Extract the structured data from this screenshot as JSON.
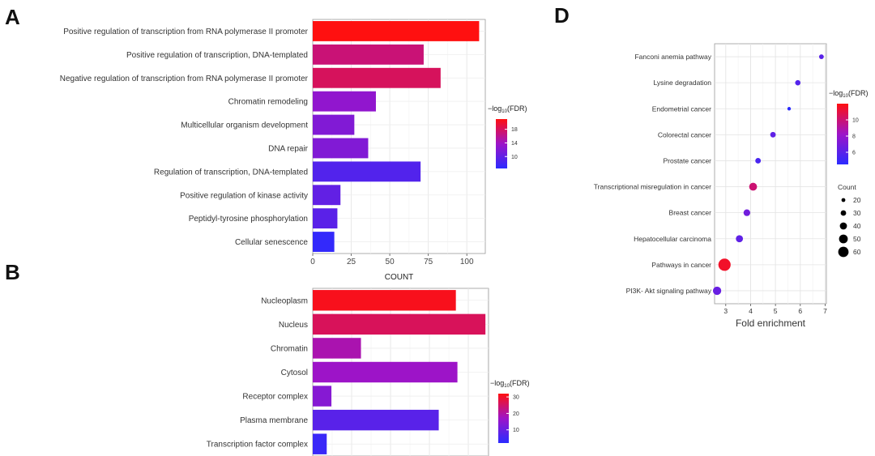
{
  "panels": {
    "A": "A",
    "B": "B",
    "D": "D"
  },
  "chart_data": [
    {
      "type": "bar",
      "orientation": "horizontal",
      "panel": "A",
      "categories": [
        "Positive regulation of transcription from RNA polymerase II promoter",
        "Positive regulation of transcription, DNA-templated",
        "Negative regulation of transcription from RNA polymerase II promoter",
        "Chromatin remodeling",
        "Multicellular organism development",
        "DNA repair",
        "Regulation of transcription, DNA-templated",
        "Positive regulation of kinase activity",
        "Peptidyl-tyrosine phosphorylation",
        "Cellular senescence"
      ],
      "values": [
        108,
        72,
        83,
        41,
        27,
        36,
        70,
        18,
        16,
        14
      ],
      "color_values": [
        21,
        17,
        18,
        13,
        12,
        12,
        9,
        10,
        9.5,
        7
      ],
      "xlim": [
        0,
        112
      ],
      "xticks": [
        "0",
        "25",
        "50",
        "75",
        "100"
      ],
      "xlabel": "COUNT",
      "legend": {
        "title_main": "−log",
        "title_sub": "10",
        "title_end": "(FDR)",
        "ticks": [
          "18",
          "14",
          "10"
        ],
        "range": [
          6.5,
          21
        ]
      }
    },
    {
      "type": "bar",
      "orientation": "horizontal",
      "panel": "B",
      "categories": [
        "Nucleoplasm",
        "Nucleus",
        "Chromatin",
        "Cytosol",
        "Receptor complex",
        "Plasma membrane",
        "Transcription factor complex"
      ],
      "values": [
        92,
        111,
        31,
        93,
        12,
        81,
        9
      ],
      "color_values": [
        31,
        26,
        19,
        17,
        14,
        8,
        4
      ],
      "xlim": [
        0,
        113
      ],
      "legend": {
        "title_main": "−log",
        "title_sub": "10",
        "title_end": "(FDR)",
        "ticks": [
          "30",
          "20",
          "10"
        ],
        "range": [
          2,
          32
        ]
      }
    },
    {
      "type": "scatter",
      "panel": "D",
      "categories": [
        "Fanconi anemia pathway",
        "Lysine degradation",
        "Endometrial cancer",
        "Colorectal cancer",
        "Prostate cancer",
        "Transcriptional misregulation in cancer",
        "Breast cancer",
        "Hepatocellular carcinoma",
        "Pathways in cancer",
        "PI3K- Akt signaling pathway"
      ],
      "x": [
        6.85,
        5.9,
        5.55,
        4.9,
        4.3,
        4.1,
        3.85,
        3.55,
        2.95,
        2.65
      ],
      "count": [
        20,
        23,
        14,
        24,
        24,
        36,
        30,
        32,
        58,
        38
      ],
      "color_values": [
        6,
        5.8,
        3.5,
        6.2,
        5.5,
        10,
        6.8,
        6.2,
        11.5,
        6.5
      ],
      "xlim": [
        2.55,
        7.05
      ],
      "xticks": [
        "3",
        "4",
        "5",
        "6",
        "7"
      ],
      "xlabel": "Fold enrichment",
      "legend": {
        "title_main": "−log",
        "title_sub": "10",
        "title_end": "(FDR)",
        "ticks": [
          "10",
          "8",
          "6"
        ],
        "range": [
          4.5,
          12
        ]
      },
      "size_legend": {
        "title": "Count",
        "values": [
          "20",
          "30",
          "40",
          "50",
          "60"
        ]
      }
    }
  ]
}
